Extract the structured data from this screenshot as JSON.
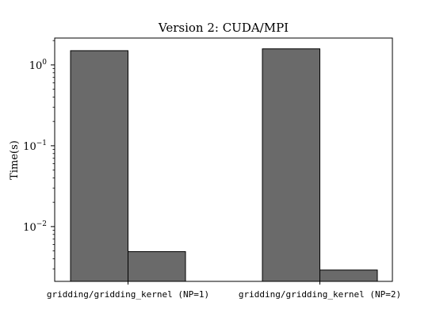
{
  "chart_data": {
    "type": "bar",
    "title": "Version 2: CUDA/MPI",
    "xlabel": "",
    "ylabel": "Time(s)",
    "yscale": "log",
    "ylim": [
      0.0021,
      2.15
    ],
    "grid": false,
    "legend": "none",
    "categories": [
      "gridding/gridding_kernel (NP=1)",
      "gridding/gridding_kernel (NP=2)"
    ],
    "series": [
      {
        "values": [
          1.5,
          1.58
        ]
      },
      {
        "values": [
          0.0049,
          0.0029
        ]
      }
    ],
    "y_ticks": [
      {
        "value": 1,
        "label": "10^0",
        "base": "10",
        "exp": "0"
      },
      {
        "value": 0.1,
        "label": "10^-1",
        "base": "10",
        "exp": "−1"
      },
      {
        "value": 0.01,
        "label": "10^-2",
        "base": "10",
        "exp": "−2"
      }
    ],
    "bar_color": "#6a6a6a",
    "edge_color": "#000000"
  }
}
